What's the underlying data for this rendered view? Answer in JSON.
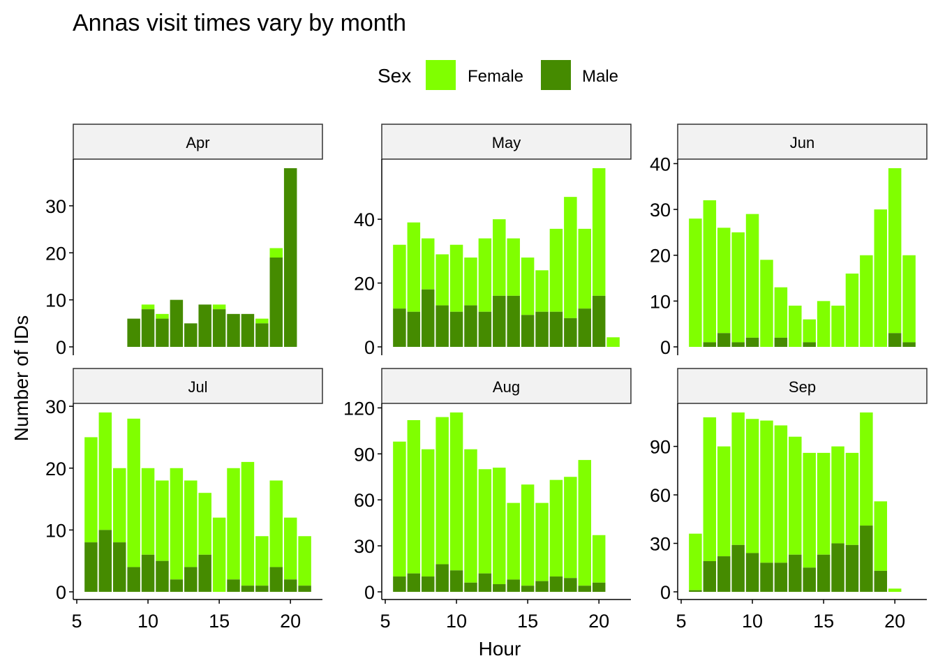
{
  "chart_data": {
    "type": "bar",
    "title": "Annas visit times vary by month",
    "xlabel": "Hour",
    "ylabel": "Number of IDs",
    "legend": {
      "title": "Sex",
      "position": "top",
      "entries": [
        {
          "label": "Female",
          "color": "#80FF00"
        },
        {
          "label": "Male",
          "color": "#458B00"
        }
      ]
    },
    "stacked": true,
    "grid": false,
    "x_ticks": [
      5,
      10,
      15,
      20
    ],
    "xlim": [
      5,
      22
    ],
    "panels": [
      {
        "label": "Apr",
        "ylim": [
          0,
          38
        ],
        "y_ticks": [
          0,
          10,
          20,
          30
        ],
        "bars": [
          {
            "hour": 9,
            "male": 6,
            "female": 0
          },
          {
            "hour": 10,
            "male": 8,
            "female": 1
          },
          {
            "hour": 11,
            "male": 6,
            "female": 1
          },
          {
            "hour": 12,
            "male": 10,
            "female": 0
          },
          {
            "hour": 13,
            "male": 5,
            "female": 0
          },
          {
            "hour": 14,
            "male": 9,
            "female": 0
          },
          {
            "hour": 15,
            "male": 8,
            "female": 1
          },
          {
            "hour": 16,
            "male": 7,
            "female": 0
          },
          {
            "hour": 17,
            "male": 7,
            "female": 0
          },
          {
            "hour": 18,
            "male": 5,
            "female": 1
          },
          {
            "hour": 19,
            "male": 19,
            "female": 2
          },
          {
            "hour": 20,
            "male": 38,
            "female": 0
          }
        ]
      },
      {
        "label": "May",
        "ylim": [
          0,
          56
        ],
        "y_ticks": [
          0,
          20,
          40
        ],
        "bars": [
          {
            "hour": 6,
            "male": 12,
            "female": 20
          },
          {
            "hour": 7,
            "male": 11,
            "female": 28
          },
          {
            "hour": 8,
            "male": 18,
            "female": 16
          },
          {
            "hour": 9,
            "male": 13,
            "female": 16
          },
          {
            "hour": 10,
            "male": 11,
            "female": 21
          },
          {
            "hour": 11,
            "male": 13,
            "female": 15
          },
          {
            "hour": 12,
            "male": 11,
            "female": 23
          },
          {
            "hour": 13,
            "male": 16,
            "female": 24
          },
          {
            "hour": 14,
            "male": 16,
            "female": 18
          },
          {
            "hour": 15,
            "male": 10,
            "female": 18
          },
          {
            "hour": 16,
            "male": 11,
            "female": 13
          },
          {
            "hour": 17,
            "male": 11,
            "female": 26
          },
          {
            "hour": 18,
            "male": 9,
            "female": 38
          },
          {
            "hour": 19,
            "male": 12,
            "female": 25
          },
          {
            "hour": 20,
            "male": 16,
            "female": 40
          },
          {
            "hour": 21,
            "male": 0,
            "female": 3
          }
        ]
      },
      {
        "label": "Jun",
        "ylim": [
          0,
          39
        ],
        "y_ticks": [
          0,
          10,
          20,
          30,
          40
        ],
        "bars": [
          {
            "hour": 6,
            "male": 0,
            "female": 28
          },
          {
            "hour": 7,
            "male": 1,
            "female": 31
          },
          {
            "hour": 8,
            "male": 3,
            "female": 23
          },
          {
            "hour": 9,
            "male": 1,
            "female": 24
          },
          {
            "hour": 10,
            "male": 2,
            "female": 27
          },
          {
            "hour": 11,
            "male": 0,
            "female": 19
          },
          {
            "hour": 12,
            "male": 2,
            "female": 11
          },
          {
            "hour": 13,
            "male": 0,
            "female": 9
          },
          {
            "hour": 14,
            "male": 1,
            "female": 5
          },
          {
            "hour": 15,
            "male": 0,
            "female": 10
          },
          {
            "hour": 16,
            "male": 0,
            "female": 9
          },
          {
            "hour": 17,
            "male": 0,
            "female": 16
          },
          {
            "hour": 18,
            "male": 0,
            "female": 20
          },
          {
            "hour": 19,
            "male": 0,
            "female": 30
          },
          {
            "hour": 20,
            "male": 3,
            "female": 36
          },
          {
            "hour": 21,
            "male": 1,
            "female": 19
          }
        ]
      },
      {
        "label": "Jul",
        "ylim": [
          0,
          29
        ],
        "y_ticks": [
          0,
          10,
          20,
          30
        ],
        "bars": [
          {
            "hour": 6,
            "male": 8,
            "female": 17
          },
          {
            "hour": 7,
            "male": 10,
            "female": 19
          },
          {
            "hour": 8,
            "male": 8,
            "female": 12
          },
          {
            "hour": 9,
            "male": 4,
            "female": 24
          },
          {
            "hour": 10,
            "male": 6,
            "female": 14
          },
          {
            "hour": 11,
            "male": 5,
            "female": 13
          },
          {
            "hour": 12,
            "male": 2,
            "female": 18
          },
          {
            "hour": 13,
            "male": 4,
            "female": 14
          },
          {
            "hour": 14,
            "male": 6,
            "female": 10
          },
          {
            "hour": 15,
            "male": 0,
            "female": 12
          },
          {
            "hour": 16,
            "male": 2,
            "female": 18
          },
          {
            "hour": 17,
            "male": 1,
            "female": 20
          },
          {
            "hour": 18,
            "male": 1,
            "female": 8
          },
          {
            "hour": 19,
            "male": 4,
            "female": 14
          },
          {
            "hour": 20,
            "male": 2,
            "female": 10
          },
          {
            "hour": 21,
            "male": 1,
            "female": 8
          }
        ]
      },
      {
        "label": "Aug",
        "ylim": [
          0,
          117
        ],
        "y_ticks": [
          0,
          30,
          60,
          90,
          120
        ],
        "bars": [
          {
            "hour": 6,
            "male": 10,
            "female": 88
          },
          {
            "hour": 7,
            "male": 12,
            "female": 100
          },
          {
            "hour": 8,
            "male": 10,
            "female": 83
          },
          {
            "hour": 9,
            "male": 18,
            "female": 96
          },
          {
            "hour": 10,
            "male": 14,
            "female": 103
          },
          {
            "hour": 11,
            "male": 6,
            "female": 87
          },
          {
            "hour": 12,
            "male": 12,
            "female": 68
          },
          {
            "hour": 13,
            "male": 5,
            "female": 76
          },
          {
            "hour": 14,
            "male": 8,
            "female": 50
          },
          {
            "hour": 15,
            "male": 4,
            "female": 66
          },
          {
            "hour": 16,
            "male": 7,
            "female": 51
          },
          {
            "hour": 17,
            "male": 10,
            "female": 63
          },
          {
            "hour": 18,
            "male": 9,
            "female": 66
          },
          {
            "hour": 19,
            "male": 4,
            "female": 82
          },
          {
            "hour": 20,
            "male": 6,
            "female": 31
          }
        ]
      },
      {
        "label": "Sep",
        "ylim": [
          0,
          111
        ],
        "y_ticks": [
          0,
          30,
          60,
          90
        ],
        "bars": [
          {
            "hour": 6,
            "male": 1,
            "female": 35
          },
          {
            "hour": 7,
            "male": 19,
            "female": 89
          },
          {
            "hour": 8,
            "male": 22,
            "female": 68
          },
          {
            "hour": 9,
            "male": 29,
            "female": 82
          },
          {
            "hour": 10,
            "male": 24,
            "female": 83
          },
          {
            "hour": 11,
            "male": 18,
            "female": 88
          },
          {
            "hour": 12,
            "male": 18,
            "female": 85
          },
          {
            "hour": 13,
            "male": 23,
            "female": 73
          },
          {
            "hour": 14,
            "male": 15,
            "female": 71
          },
          {
            "hour": 15,
            "male": 23,
            "female": 63
          },
          {
            "hour": 16,
            "male": 30,
            "female": 60
          },
          {
            "hour": 17,
            "male": 29,
            "female": 57
          },
          {
            "hour": 18,
            "male": 41,
            "female": 70
          },
          {
            "hour": 19,
            "male": 13,
            "female": 43
          },
          {
            "hour": 20,
            "male": 0,
            "female": 2
          }
        ]
      }
    ]
  }
}
